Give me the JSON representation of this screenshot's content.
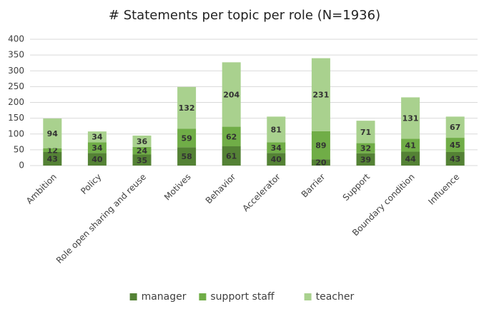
{
  "chart_data": {
    "type": "stacked-bar",
    "title": "# Statements per topic per role (N=1936)",
    "categories": [
      "Ambition",
      "Policy",
      "Role open sharing and reuse",
      "Motives",
      "Behavior",
      "Accelerator",
      "Barrier",
      "Support",
      "Boundary condition",
      "Influence"
    ],
    "series": [
      {
        "name": "manager",
        "color": "#548235",
        "values": [
          43,
          40,
          35,
          58,
          61,
          40,
          20,
          39,
          44,
          43
        ]
      },
      {
        "name": "support staff",
        "color": "#70ad47",
        "values": [
          12,
          34,
          24,
          59,
          62,
          34,
          89,
          32,
          41,
          45
        ]
      },
      {
        "name": "teacher",
        "color": "#a9d18e",
        "values": [
          94,
          34,
          36,
          132,
          204,
          81,
          231,
          71,
          131,
          67
        ]
      }
    ],
    "ylim": [
      0,
      400
    ],
    "yticks": [
      0,
      50,
      100,
      150,
      200,
      250,
      300,
      350,
      400
    ],
    "grid": true,
    "legend": "bottom"
  }
}
